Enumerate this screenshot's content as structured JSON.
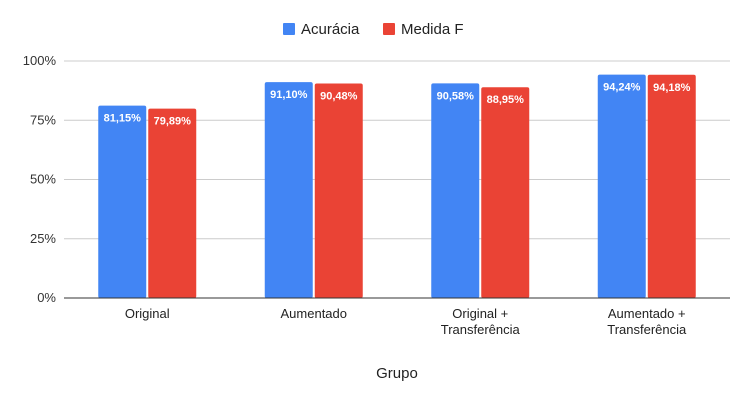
{
  "chart_data": {
    "type": "bar",
    "categories": [
      [
        "Original"
      ],
      [
        "Aumentado"
      ],
      [
        "Original +",
        "Transferência"
      ],
      [
        "Aumentado +",
        "Transferência"
      ]
    ],
    "series": [
      {
        "name": "Acurácia",
        "color": "#4285f4",
        "values": [
          81.15,
          91.1,
          90.58,
          94.24
        ],
        "labels": [
          "81,15%",
          "91,10%",
          "90,58%",
          "94,24%"
        ]
      },
      {
        "name": "Medida F",
        "color": "#ea4335",
        "values": [
          79.89,
          90.48,
          88.95,
          94.18
        ],
        "labels": [
          "79,89%",
          "90,48%",
          "88,95%",
          "94,18%"
        ]
      }
    ],
    "title": "",
    "xlabel": "Grupo",
    "ylabel": "",
    "ylim": [
      0,
      100
    ],
    "yticks": [
      0,
      25,
      50,
      75,
      100
    ],
    "ytick_labels": [
      "0%",
      "25%",
      "50%",
      "75%",
      "100%"
    ],
    "grid": true,
    "legend_position": "top-center"
  }
}
